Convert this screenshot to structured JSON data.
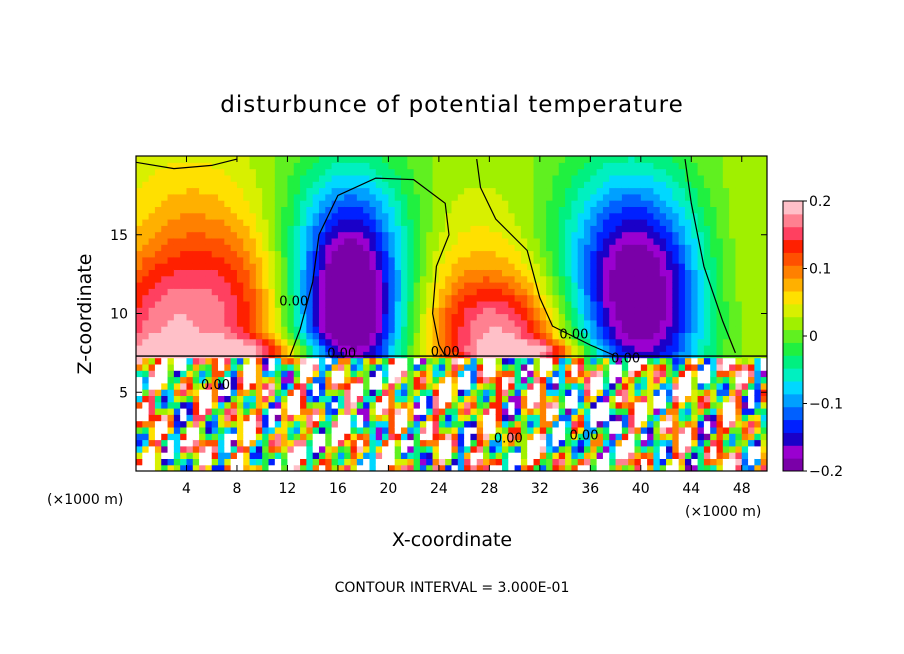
{
  "chart_data": {
    "type": "heatmap",
    "title": "disturbunce of potential temperature",
    "xlabel": "X-coordinate",
    "ylabel": "Z-coordinate",
    "x_unit_left": "(×1000 m)",
    "x_unit_right": "(×1000 m)",
    "xlim": [
      0,
      50
    ],
    "ylim": [
      0,
      20
    ],
    "x_ticks": [
      4,
      8,
      12,
      16,
      20,
      24,
      28,
      32,
      36,
      40,
      44,
      48
    ],
    "y_ticks": [
      5,
      10,
      15
    ],
    "footer": "CONTOUR INTERVAL = 3.000E-01",
    "colorbar": {
      "range": [
        -0.2,
        0.2
      ],
      "tick_labels": [
        {
          "value": 0.2,
          "label": "0.2"
        },
        {
          "value": 0.1,
          "label": "0.1"
        },
        {
          "value": 0,
          "label": "0"
        },
        {
          "value": -0.1,
          "label": "−0.1"
        },
        {
          "value": -0.2,
          "label": "−0.2"
        }
      ],
      "colors": [
        "#7a00a8",
        "#9a00d0",
        "#1a00c8",
        "#0020ff",
        "#0060ff",
        "#00a0ff",
        "#00d8ff",
        "#00f0c0",
        "#00f080",
        "#20f040",
        "#60f020",
        "#a0f000",
        "#d8f000",
        "#ffe000",
        "#ffb000",
        "#ff8000",
        "#ff5000",
        "#ff2000",
        "#ff4060",
        "#ff8090",
        "#ffc0c8"
      ]
    },
    "contour_labels": [
      {
        "x": 12.5,
        "z": 10.5,
        "text": "0.00"
      },
      {
        "x": 16.3,
        "z": 7.2,
        "text": "0.00"
      },
      {
        "x": 24.5,
        "z": 7.3,
        "text": "0.00"
      },
      {
        "x": 34.7,
        "z": 8.4,
        "text": "0.00"
      },
      {
        "x": 38.8,
        "z": 6.9,
        "text": "0.00"
      },
      {
        "x": 6.3,
        "z": 5.2,
        "text": "0.00"
      },
      {
        "x": 29.5,
        "z": 1.8,
        "text": "0.00"
      },
      {
        "x": 35.5,
        "z": 2.0,
        "text": "0.00"
      }
    ],
    "interface_height": 7.3
  }
}
